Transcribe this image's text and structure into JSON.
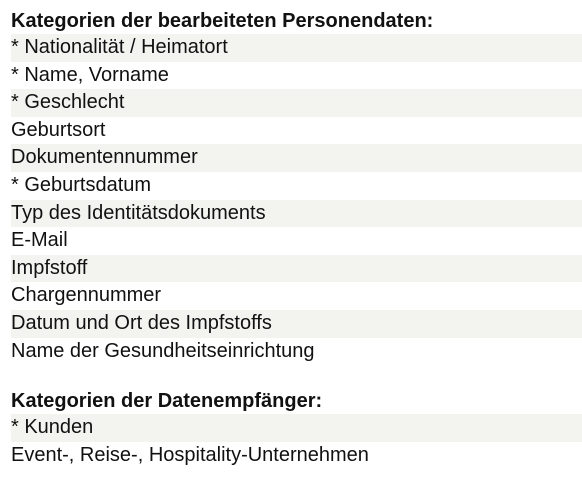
{
  "sections": [
    {
      "title": "Kategorien der bearbeiteten Personendaten:",
      "items": [
        "* Nationalität / Heimatort",
        "* Name, Vorname",
        "* Geschlecht",
        "Geburtsort",
        "Dokumentennummer",
        "* Geburtsdatum",
        "Typ des Identitätsdokuments",
        "E-Mail",
        "Impfstoff",
        "Chargennummer",
        "Datum und Ort des Impfstoffs",
        "Name der Gesundheitseinrichtung"
      ]
    },
    {
      "title": "Kategorien der Datenempfänger:",
      "items": [
        "* Kunden",
        "Event-, Reise-, Hospitality-Unternehmen"
      ]
    }
  ]
}
